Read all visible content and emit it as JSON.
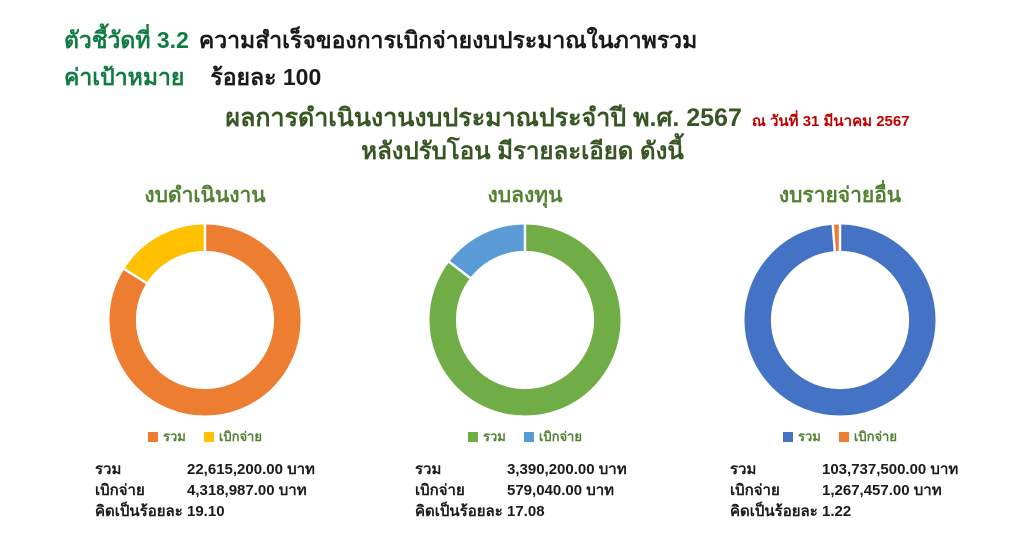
{
  "header": {
    "indicator_label": "ตัวชี้วัดที่ 3.2",
    "indicator_title": "ความสำเร็จของการเบิกจ่ายงบประมาณในภาพรวม",
    "target_label": "ค่าเป้าหมาย",
    "target_value": "ร้อยละ 100"
  },
  "main_title": {
    "line1": "ผลการดำเนินงานงบประมาณประจำปี พ.ศ. 2567",
    "date_note": "ณ วันที่ 31 มีนาคม 2567",
    "line2": "หลังปรับโอน มีรายละเอียด ดังนี้"
  },
  "colors": {
    "header_green": "#107C41",
    "main_title_green": "#375623",
    "chart_title_green": "#548235",
    "date_red": "#C00000",
    "text_dark": "#1A1A1A",
    "orange": "#ED7D31",
    "gold": "#FFC000",
    "green": "#70AD47",
    "light_blue": "#5B9BD5",
    "blue": "#4472C4"
  },
  "chart_data": [
    {
      "type": "pie",
      "subtype": "donut",
      "title": "งบดำเนินงาน",
      "legend_position": "bottom",
      "slices": [
        {
          "label": "รวม",
          "value": 22615200.0,
          "color": "#ED7D31"
        },
        {
          "label": "เบิกจ่าย",
          "value": 4318987.0,
          "color": "#FFC000"
        }
      ],
      "stats": [
        {
          "label": "รวม",
          "value": "22,615,200.00 บาท"
        },
        {
          "label": "เบิกจ่าย",
          "value": "4,318,987.00 บาท"
        },
        {
          "label": "คิดเป็นร้อยละ",
          "value": "19.10"
        }
      ],
      "percent_disbursed": 19.1
    },
    {
      "type": "pie",
      "subtype": "donut",
      "title": "งบลงทุน",
      "legend_position": "bottom",
      "slices": [
        {
          "label": "รวม",
          "value": 3390200.0,
          "color": "#70AD47"
        },
        {
          "label": "เบิกจ่าย",
          "value": 579040.0,
          "color": "#5B9BD5"
        }
      ],
      "stats": [
        {
          "label": "รวม",
          "value": "3,390,200.00 บาท"
        },
        {
          "label": "เบิกจ่าย",
          "value": "579,040.00 บาท"
        },
        {
          "label": "คิดเป็นร้อยละ",
          "value": "17.08"
        }
      ],
      "percent_disbursed": 17.08
    },
    {
      "type": "pie",
      "subtype": "donut",
      "title": "งบรายจ่ายอื่น",
      "legend_position": "bottom",
      "slices": [
        {
          "label": "รวม",
          "value": 103737500.0,
          "color": "#4472C4"
        },
        {
          "label": "เบิกจ่าย",
          "value": 1267457.0,
          "color": "#ED7D31"
        }
      ],
      "stats": [
        {
          "label": "รวม",
          "value": "103,737,500.00 บาท"
        },
        {
          "label": "เบิกจ่าย",
          "value": "1,267,457.00 บาท"
        },
        {
          "label": "คิดเป็นร้อยละ",
          "value": "1.22"
        }
      ],
      "percent_disbursed": 1.22
    }
  ]
}
